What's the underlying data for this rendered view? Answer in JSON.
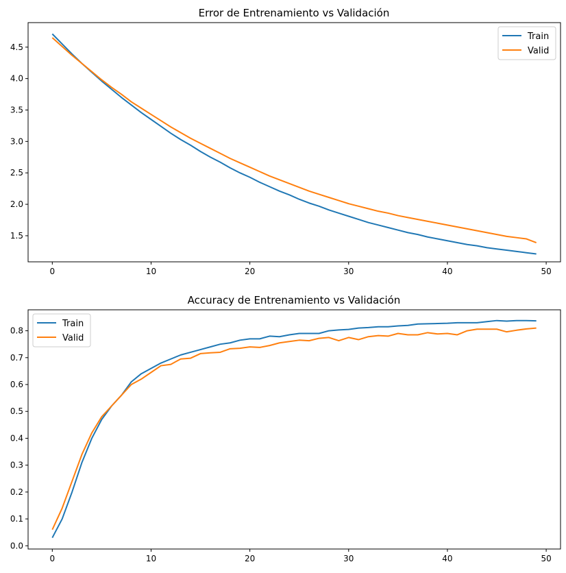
{
  "chart_data": [
    {
      "type": "line",
      "title": "Error de Entrenamiento vs Validación",
      "xlabel": "",
      "ylabel": "",
      "xlim": [
        -2.45,
        51.45
      ],
      "ylim": [
        1.085,
        4.89
      ],
      "xticks": [
        0,
        10,
        20,
        30,
        40,
        50
      ],
      "xtick_labels": [
        "0",
        "10",
        "20",
        "30",
        "40",
        "50"
      ],
      "yticks": [
        1.5,
        2.0,
        2.5,
        3.0,
        3.5,
        4.0,
        4.5
      ],
      "ytick_labels": [
        "1.5",
        "2.0",
        "2.5",
        "3.0",
        "3.5",
        "4.0",
        "4.5"
      ],
      "grid": false,
      "legend": "upper right",
      "x": [
        0,
        1,
        2,
        3,
        4,
        5,
        6,
        7,
        8,
        9,
        10,
        11,
        12,
        13,
        14,
        15,
        16,
        17,
        18,
        19,
        20,
        21,
        22,
        23,
        24,
        25,
        26,
        27,
        28,
        29,
        30,
        31,
        32,
        33,
        34,
        35,
        36,
        37,
        38,
        39,
        40,
        41,
        42,
        43,
        44,
        45,
        46,
        47,
        48,
        49
      ],
      "series": [
        {
          "name": "Train",
          "color": "#1f77b4",
          "values": [
            4.71,
            4.55,
            4.39,
            4.24,
            4.1,
            3.96,
            3.83,
            3.7,
            3.58,
            3.46,
            3.35,
            3.24,
            3.13,
            3.03,
            2.94,
            2.84,
            2.75,
            2.67,
            2.58,
            2.5,
            2.43,
            2.35,
            2.28,
            2.21,
            2.15,
            2.08,
            2.02,
            1.97,
            1.91,
            1.86,
            1.81,
            1.76,
            1.71,
            1.67,
            1.63,
            1.59,
            1.55,
            1.52,
            1.48,
            1.45,
            1.42,
            1.39,
            1.36,
            1.34,
            1.31,
            1.29,
            1.27,
            1.25,
            1.23,
            1.21
          ]
        },
        {
          "name": "Valid",
          "color": "#ff7f0e",
          "values": [
            4.65,
            4.51,
            4.37,
            4.24,
            4.11,
            3.98,
            3.86,
            3.75,
            3.63,
            3.53,
            3.43,
            3.33,
            3.23,
            3.14,
            3.05,
            2.97,
            2.89,
            2.81,
            2.73,
            2.66,
            2.59,
            2.52,
            2.45,
            2.39,
            2.33,
            2.27,
            2.21,
            2.16,
            2.11,
            2.06,
            2.01,
            1.97,
            1.93,
            1.89,
            1.86,
            1.82,
            1.79,
            1.76,
            1.73,
            1.7,
            1.67,
            1.64,
            1.61,
            1.58,
            1.55,
            1.52,
            1.49,
            1.47,
            1.45,
            1.39
          ]
        }
      ]
    },
    {
      "type": "line",
      "title": "Accuracy de Entrenamiento vs Validación",
      "xlabel": "",
      "ylabel": "",
      "xlim": [
        -2.45,
        51.45
      ],
      "ylim": [
        -0.012,
        0.878
      ],
      "xticks": [
        0,
        10,
        20,
        30,
        40,
        50
      ],
      "xtick_labels": [
        "0",
        "10",
        "20",
        "30",
        "40",
        "50"
      ],
      "yticks": [
        0.0,
        0.1,
        0.2,
        0.3,
        0.4,
        0.5,
        0.6,
        0.7,
        0.8
      ],
      "ytick_labels": [
        "0.0",
        "0.1",
        "0.2",
        "0.3",
        "0.4",
        "0.5",
        "0.6",
        "0.7",
        "0.8"
      ],
      "grid": false,
      "legend": "upper left",
      "x": [
        0,
        1,
        2,
        3,
        4,
        5,
        6,
        7,
        8,
        9,
        10,
        11,
        12,
        13,
        14,
        15,
        16,
        17,
        18,
        19,
        20,
        21,
        22,
        23,
        24,
        25,
        26,
        27,
        28,
        29,
        30,
        31,
        32,
        33,
        34,
        35,
        36,
        37,
        38,
        39,
        40,
        41,
        42,
        43,
        44,
        45,
        46,
        47,
        48,
        49
      ],
      "series": [
        {
          "name": "Train",
          "color": "#1f77b4",
          "values": [
            0.03,
            0.1,
            0.2,
            0.31,
            0.4,
            0.47,
            0.52,
            0.56,
            0.61,
            0.64,
            0.66,
            0.68,
            0.695,
            0.71,
            0.72,
            0.73,
            0.74,
            0.75,
            0.755,
            0.765,
            0.77,
            0.77,
            0.78,
            0.778,
            0.785,
            0.79,
            0.79,
            0.79,
            0.8,
            0.803,
            0.805,
            0.81,
            0.812,
            0.815,
            0.815,
            0.818,
            0.82,
            0.825,
            0.826,
            0.827,
            0.828,
            0.83,
            0.83,
            0.83,
            0.834,
            0.838,
            0.836,
            0.838,
            0.838,
            0.837
          ]
        },
        {
          "name": "Valid",
          "color": "#ff7f0e",
          "values": [
            0.06,
            0.14,
            0.24,
            0.34,
            0.42,
            0.48,
            0.52,
            0.56,
            0.6,
            0.62,
            0.645,
            0.67,
            0.675,
            0.695,
            0.698,
            0.715,
            0.718,
            0.72,
            0.733,
            0.735,
            0.74,
            0.738,
            0.745,
            0.755,
            0.76,
            0.765,
            0.763,
            0.772,
            0.775,
            0.763,
            0.775,
            0.767,
            0.778,
            0.782,
            0.78,
            0.79,
            0.785,
            0.785,
            0.793,
            0.788,
            0.79,
            0.785,
            0.8,
            0.806,
            0.806,
            0.806,
            0.796,
            0.802,
            0.807,
            0.81
          ]
        }
      ]
    }
  ]
}
